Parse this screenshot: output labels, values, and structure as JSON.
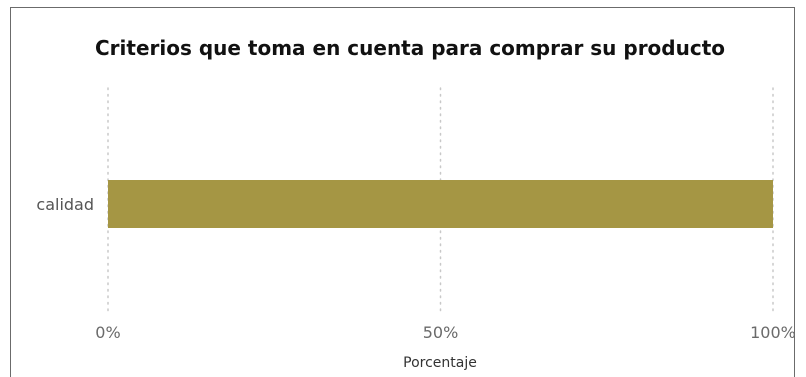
{
  "chart_data": {
    "type": "bar",
    "orientation": "horizontal",
    "title": "Criterios que toma en cuenta para comprar su producto",
    "xlabel": "Porcentaje",
    "ylabel": "",
    "categories": [
      "calidad"
    ],
    "values": [
      100
    ],
    "xlim": [
      0,
      100
    ],
    "ticks": [
      0,
      50,
      100
    ],
    "tick_labels": [
      "0%",
      "50%",
      "100%"
    ],
    "grid": true,
    "bar_color": "#A59644",
    "grid_color": "#C8C8C8"
  }
}
